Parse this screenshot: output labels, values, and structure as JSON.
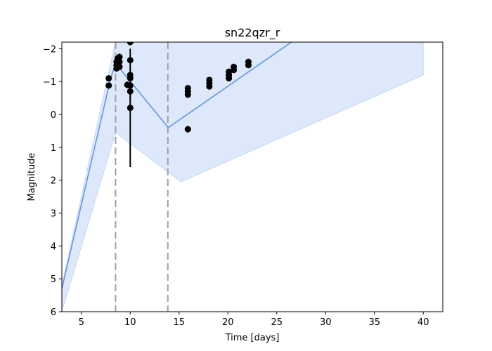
{
  "chart_data": {
    "type": "line",
    "title": "sn22qzr_r",
    "xlabel": "Time [days]",
    "ylabel": "Magnitude",
    "xlim": [
      3,
      42
    ],
    "ylim": [
      6,
      -2.2
    ],
    "y_inverted": true,
    "grid": false,
    "x_ticks": [
      5,
      10,
      15,
      20,
      25,
      30,
      35,
      40
    ],
    "y_ticks": [
      -2,
      -1,
      0,
      1,
      2,
      3,
      4,
      5,
      6
    ],
    "colors": {
      "model_line": "#6495ed",
      "band_fill": "#6495ed",
      "points": "#000000",
      "vlines": "#a0a0a0"
    },
    "model_line": {
      "x": [
        3.0,
        8.0,
        8.5,
        13.9,
        26.5
      ],
      "y": [
        5.3,
        -1.1,
        -1.55,
        0.4,
        -2.2
      ]
    },
    "uncertainty_band": {
      "upper": {
        "x": [
          3.0,
          8.5,
          40.0
        ],
        "y": [
          5.2,
          -2.25,
          -2.2
        ]
      },
      "lower": {
        "x": [
          40.0,
          15.2,
          8.5,
          3.0
        ],
        "y": [
          -1.2,
          2.05,
          0.55,
          6.0
        ]
      }
    },
    "vertical_lines": [
      8.5,
      13.85
    ],
    "observations": [
      {
        "x": 7.8,
        "y": -1.1,
        "err": 0.05
      },
      {
        "x": 7.8,
        "y": -0.88,
        "err": 0.05
      },
      {
        "x": 8.6,
        "y": -1.4,
        "err": 0.05
      },
      {
        "x": 8.6,
        "y": -1.5,
        "err": 0.05
      },
      {
        "x": 8.6,
        "y": -1.6,
        "err": 0.05
      },
      {
        "x": 8.7,
        "y": -1.7,
        "err": 0.05
      },
      {
        "x": 8.9,
        "y": -1.45,
        "err": 0.05
      },
      {
        "x": 8.9,
        "y": -1.6,
        "err": 0.05
      },
      {
        "x": 8.9,
        "y": -1.75,
        "err": 0.1
      },
      {
        "x": 9.7,
        "y": -0.9,
        "err": 0.1
      },
      {
        "x": 10.0,
        "y": -2.2,
        "err": 0.1
      },
      {
        "x": 10.0,
        "y": -1.65,
        "err": 0.1
      },
      {
        "x": 10.0,
        "y": -1.2,
        "err": 0.1
      },
      {
        "x": 10.0,
        "y": -1.1,
        "err": 0.1
      },
      {
        "x": 10.0,
        "y": -0.88,
        "err": 0.1
      },
      {
        "x": 10.0,
        "y": -0.7,
        "err": 0.25
      },
      {
        "x": 10.0,
        "y": -0.2,
        "err": 1.8
      },
      {
        "x": 15.9,
        "y": -0.8,
        "err": 0.05
      },
      {
        "x": 15.9,
        "y": -0.7,
        "err": 0.05
      },
      {
        "x": 15.9,
        "y": -0.6,
        "err": 0.05
      },
      {
        "x": 15.9,
        "y": 0.45,
        "err": 0.1
      },
      {
        "x": 18.1,
        "y": -1.05,
        "err": 0.05
      },
      {
        "x": 18.1,
        "y": -0.95,
        "err": 0.05
      },
      {
        "x": 18.1,
        "y": -0.85,
        "err": 0.05
      },
      {
        "x": 20.1,
        "y": -1.3,
        "err": 0.05
      },
      {
        "x": 20.1,
        "y": -1.2,
        "err": 0.05
      },
      {
        "x": 20.1,
        "y": -1.1,
        "err": 0.05
      },
      {
        "x": 20.6,
        "y": -1.45,
        "err": 0.05
      },
      {
        "x": 20.6,
        "y": -1.35,
        "err": 0.05
      },
      {
        "x": 22.1,
        "y": -1.6,
        "err": 0.05
      },
      {
        "x": 22.1,
        "y": -1.5,
        "err": 0.05
      }
    ]
  }
}
